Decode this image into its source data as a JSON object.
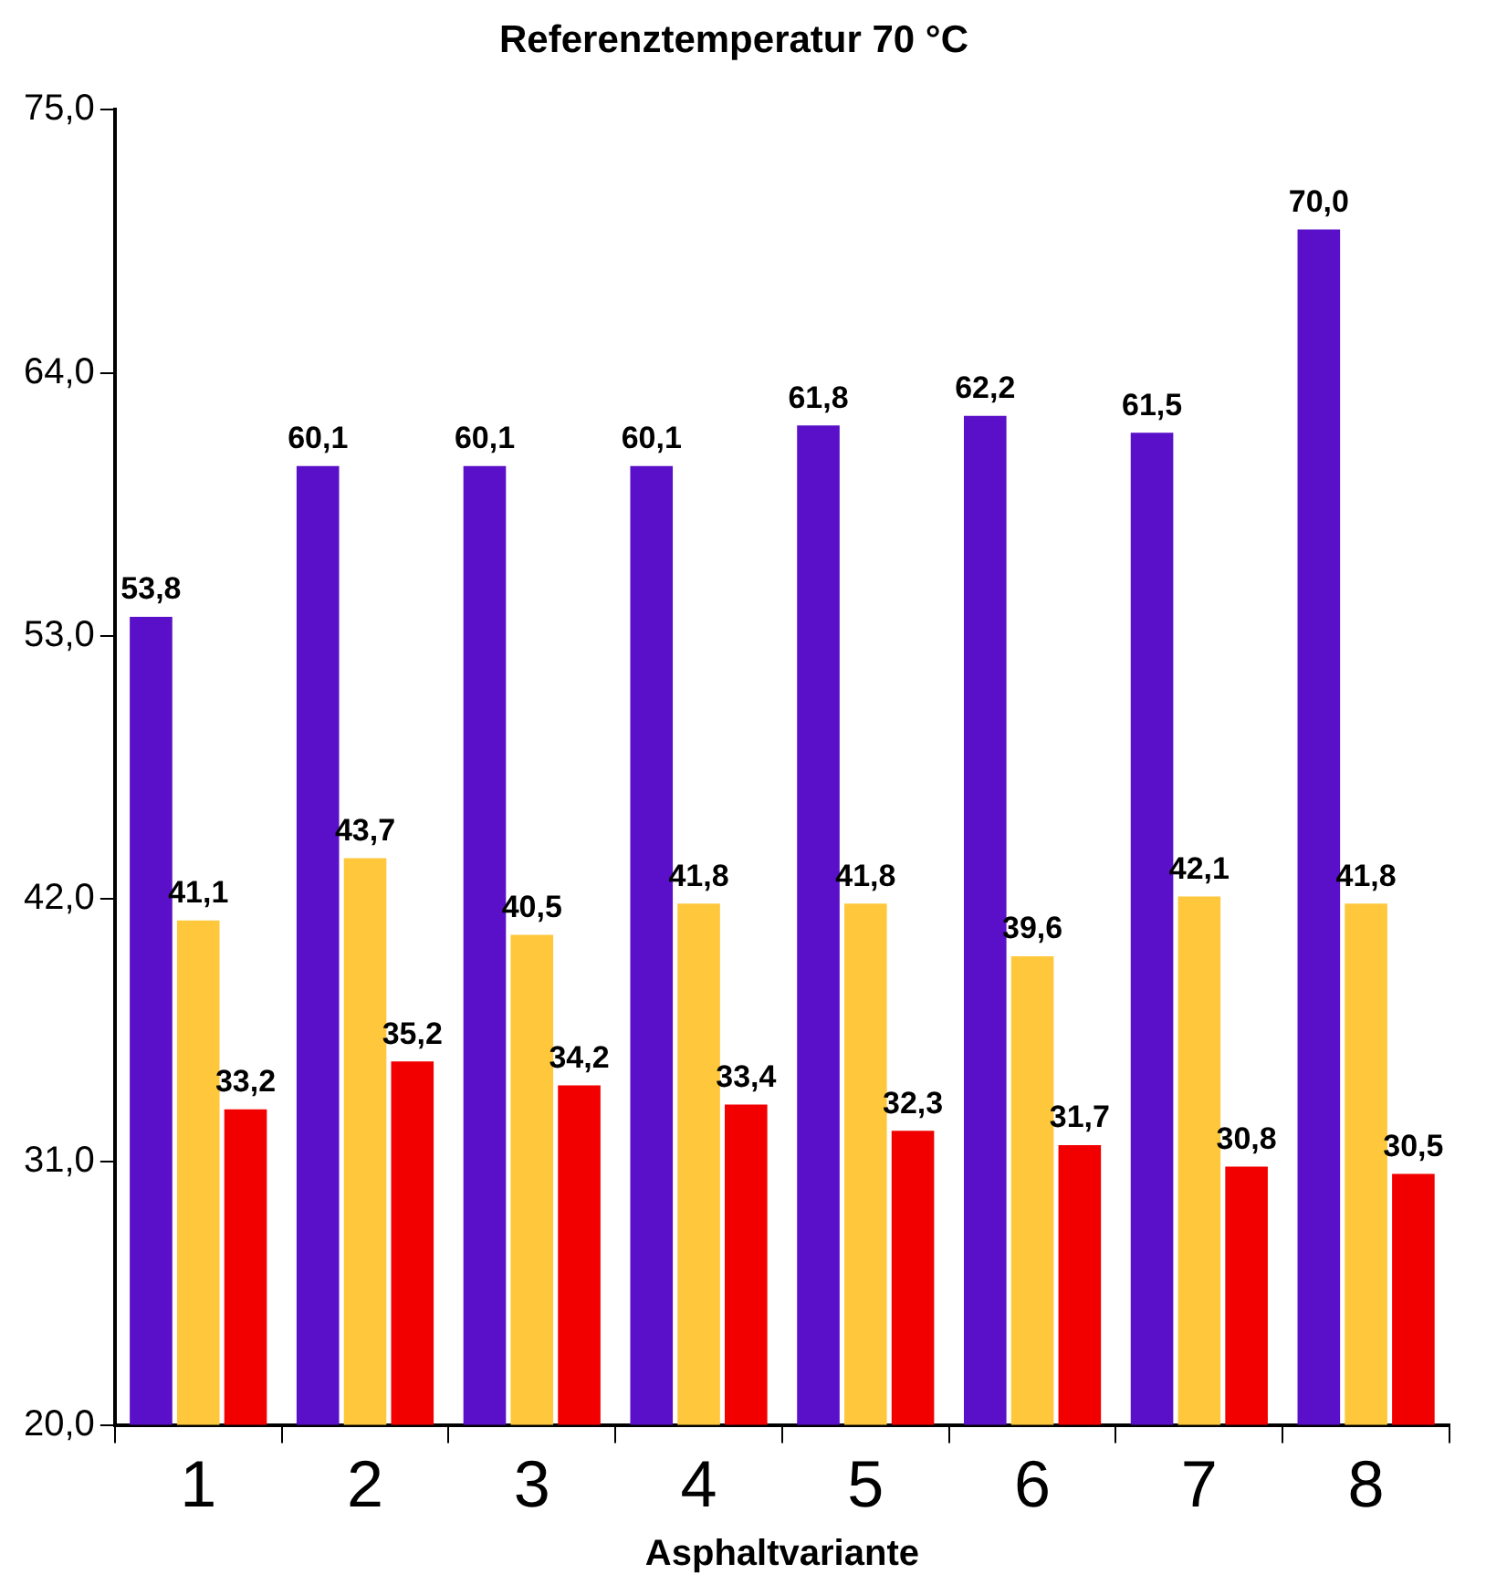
{
  "chart_data": {
    "type": "bar",
    "title": "Referenztemperatur 70 °C",
    "xlabel": "Asphaltvariante",
    "categories": [
      "1",
      "2",
      "3",
      "4",
      "5",
      "6",
      "7",
      "8"
    ],
    "series": [
      {
        "color": "#5a0fc8",
        "values": [
          53.8,
          60.1,
          60.1,
          60.1,
          61.8,
          62.2,
          61.5,
          70.0
        ],
        "value_labels": [
          "53,8",
          "60,1",
          "60,1",
          "60,1",
          "61,8",
          "62,2",
          "61,5",
          "70,0"
        ]
      },
      {
        "color": "#ffc83c",
        "values": [
          41.1,
          43.7,
          40.5,
          41.8,
          41.8,
          39.6,
          42.1,
          41.8
        ],
        "value_labels": [
          "41,1",
          "43,7",
          "40,5",
          "41,8",
          "41,8",
          "39,6",
          "42,1",
          "41,8"
        ]
      },
      {
        "color": "#f20000",
        "values": [
          33.2,
          35.2,
          34.2,
          33.4,
          32.3,
          31.7,
          30.8,
          30.5
        ],
        "value_labels": [
          "33,2",
          "35,2",
          "34,2",
          "33,4",
          "32,3",
          "31,7",
          "30,8",
          "30,5"
        ]
      }
    ],
    "ylim": [
      20,
      75
    ],
    "yticks": [
      {
        "value": 20,
        "label": "20,0"
      },
      {
        "value": 31,
        "label": "31,0"
      },
      {
        "value": 42,
        "label": "42,0"
      },
      {
        "value": 53,
        "label": "53,0"
      },
      {
        "value": 64,
        "label": "64,0"
      },
      {
        "value": 75,
        "label": "75,0"
      }
    ],
    "grid": false,
    "legend": false
  }
}
